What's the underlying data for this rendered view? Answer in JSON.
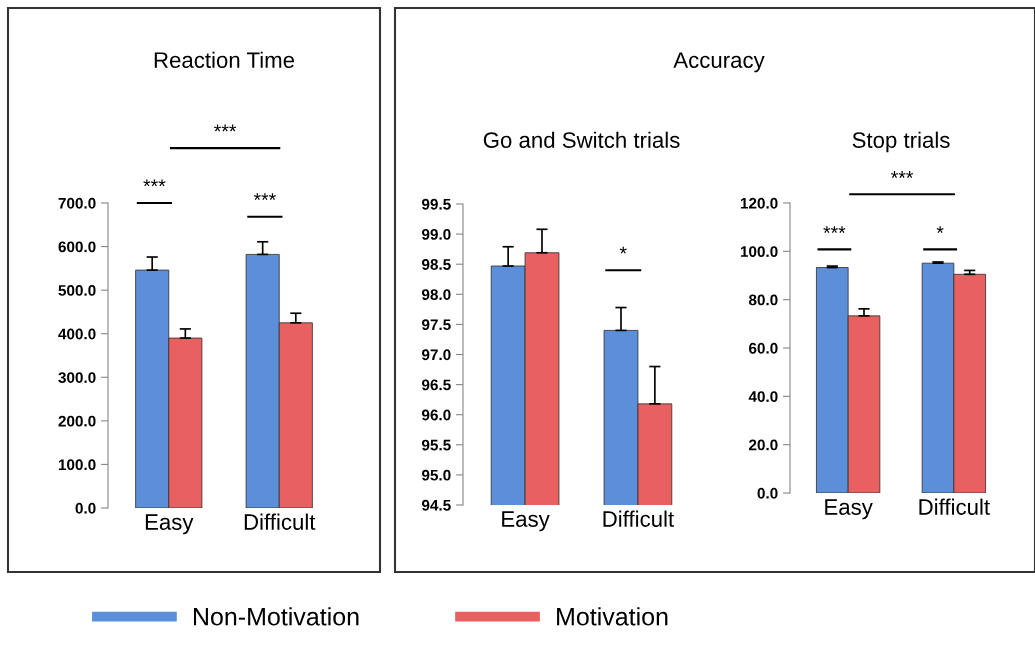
{
  "chart_data": [
    {
      "type": "bar",
      "title": "Reaction Time",
      "categories": [
        "Easy",
        "Difficult"
      ],
      "legend": "bottom",
      "grid": false,
      "series": [
        {
          "name": "Non-Motivation",
          "color": "#5b8fd9",
          "values": [
            546,
            582
          ],
          "errors": [
            [
              546,
              576
            ],
            [
              582,
              611
            ]
          ]
        },
        {
          "name": "Motivation",
          "color": "#e8605f",
          "values": [
            390,
            425
          ],
          "errors": [
            [
              390,
              411
            ],
            [
              425,
              447
            ]
          ]
        }
      ],
      "ylim": [
        0,
        700
      ],
      "yticks": [
        {
          "value": 0,
          "label": "0.0"
        },
        {
          "value": 100,
          "label": "100.0"
        },
        {
          "value": 200,
          "label": "200.0"
        },
        {
          "value": 300,
          "label": "300.0"
        },
        {
          "value": 400,
          "label": "400.0"
        },
        {
          "value": 500,
          "label": "500.0"
        },
        {
          "value": 600,
          "label": "600.0"
        },
        {
          "value": 700,
          "label": "700.0"
        }
      ],
      "annotations": [
        "***",
        "***",
        "***"
      ]
    },
    {
      "type": "bar",
      "title": "Accuracy",
      "subtitle": "Go and Switch trials",
      "categories": [
        "Easy",
        "Difficult"
      ],
      "grid": false,
      "series": [
        {
          "color": "#5b8fd9",
          "values": [
            98.47,
            97.4
          ],
          "errors": [
            [
              98.47,
              98.79
            ],
            [
              97.4,
              97.78
            ]
          ]
        },
        {
          "color": "#e8605f",
          "values": [
            98.69,
            96.18
          ],
          "errors": [
            [
              98.69,
              99.08
            ],
            [
              96.18,
              96.8
            ]
          ]
        }
      ],
      "ylim": [
        94.5,
        99.5
      ],
      "yticks": [
        {
          "value": 94.5,
          "label": "94.5"
        },
        {
          "value": 95,
          "label": "95.0"
        },
        {
          "value": 95.5,
          "label": "95.5"
        },
        {
          "value": 96,
          "label": "96.0"
        },
        {
          "value": 96.5,
          "label": "96.5"
        },
        {
          "value": 97,
          "label": "97.0"
        },
        {
          "value": 97.5,
          "label": "97.5"
        },
        {
          "value": 98,
          "label": "98.0"
        },
        {
          "value": 98.5,
          "label": "98.5"
        },
        {
          "value": 99,
          "label": "99.0"
        },
        {
          "value": 99.5,
          "label": "99.5"
        }
      ],
      "annotations": [
        "*"
      ]
    },
    {
      "type": "bar",
      "subtitle": "Stop trials",
      "categories": [
        "Easy",
        "Difficult"
      ],
      "grid": false,
      "series": [
        {
          "color": "#5b8fd9",
          "values": [
            93.3,
            95.1
          ],
          "errors": [
            [
              93.3,
              93.9
            ],
            [
              95.1,
              95.6
            ]
          ]
        },
        {
          "color": "#e8605f",
          "values": [
            73.3,
            90.5
          ],
          "errors": [
            [
              73.3,
              76.2
            ],
            [
              90.5,
              92.1
            ]
          ]
        }
      ],
      "ylim": [
        0,
        120
      ],
      "yticks": [
        {
          "value": 0,
          "label": "0.0"
        },
        {
          "value": 20,
          "label": "20.0"
        },
        {
          "value": 40,
          "label": "40.0"
        },
        {
          "value": 60,
          "label": "60.0"
        },
        {
          "value": 80,
          "label": "80.0"
        },
        {
          "value": 100,
          "label": "100.0"
        },
        {
          "value": 120,
          "label": "120.0"
        }
      ],
      "annotations": [
        "***",
        "*",
        "***"
      ]
    }
  ]
}
